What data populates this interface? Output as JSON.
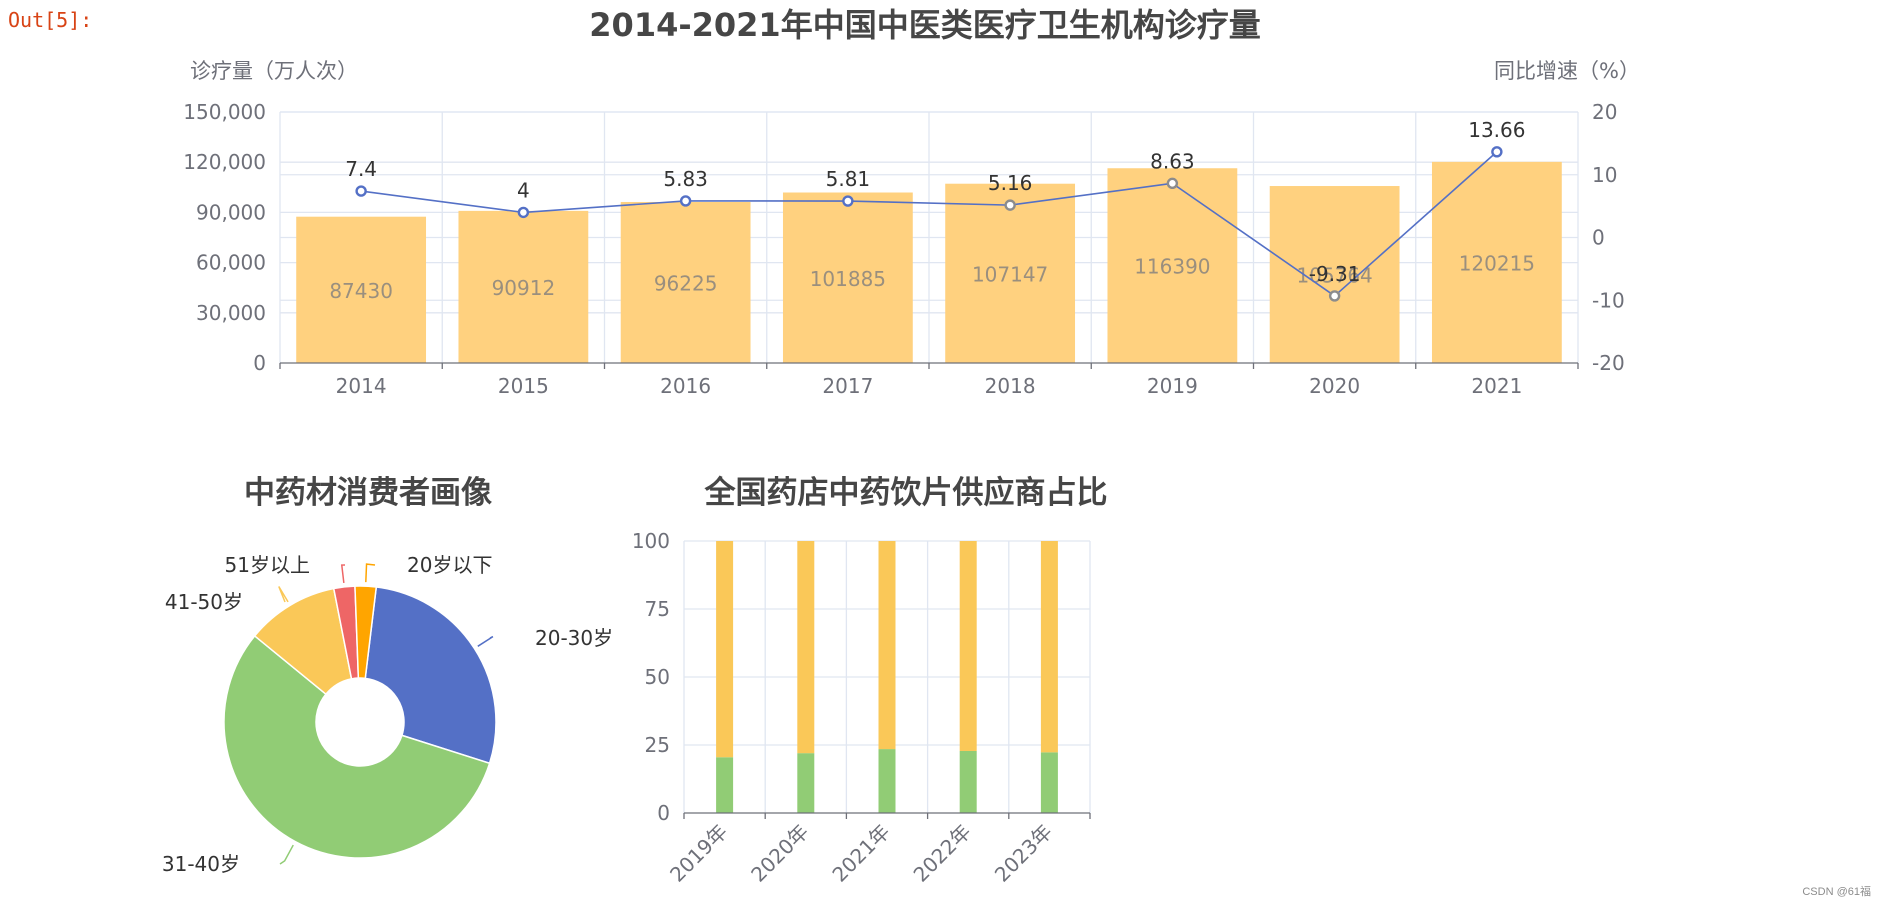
{
  "cell_label": "Out[5]:",
  "watermark": "CSDN @61福",
  "chart_data": [
    {
      "type": "bar",
      "title": "2014-2021年中国中医类医疗卫生机构诊疗量",
      "ylabel": "诊疗量（万人次）",
      "y2label": "同比增速（%）",
      "categories": [
        "2014",
        "2015",
        "2016",
        "2017",
        "2018",
        "2019",
        "2020",
        "2021"
      ],
      "ylim": [
        0,
        150000
      ],
      "y_ticks": [
        "0",
        "30,000",
        "60,000",
        "90,000",
        "120,000",
        "150,000"
      ],
      "y2lim": [
        -20,
        20
      ],
      "y2_ticks": [
        "-20",
        "-10",
        "0",
        "10",
        "20"
      ],
      "series": [
        {
          "type": "bar",
          "values": [
            87430,
            90912,
            96225,
            101885,
            107147,
            116390,
            105764,
            120215
          ],
          "color": "#ffd17f"
        },
        {
          "type": "line",
          "axis": "right",
          "values": [
            7.4,
            4,
            5.83,
            5.81,
            5.16,
            8.63,
            -9.31,
            13.66
          ],
          "color": "#5470c6",
          "color_secondary": "#8c8c8c"
        }
      ],
      "grid": true
    },
    {
      "type": "pie",
      "title": "中药材消费者画像",
      "donut": true,
      "slices": [
        {
          "label": "20-30岁",
          "value": 28,
          "color": "#5470c6"
        },
        {
          "label": "31-40岁",
          "value": 56,
          "color": "#91cc75"
        },
        {
          "label": "41-50岁",
          "value": 11,
          "color": "#fac858"
        },
        {
          "label": "51岁以上",
          "value": 2.5,
          "color": "#ee6666"
        },
        {
          "label": "20岁以下",
          "value": 2.5,
          "color": "#ffa500"
        }
      ]
    },
    {
      "type": "bar",
      "stacked": true,
      "title": "全国药店中药饮片供应商占比",
      "categories": [
        "2019年",
        "2020年",
        "2021年",
        "2022年",
        "2023年"
      ],
      "ylim": [
        0,
        100
      ],
      "y_ticks": [
        "0",
        "25",
        "50",
        "75",
        "100"
      ],
      "series": [
        {
          "values": [
            20.5,
            22,
            23.5,
            22.8,
            22.3
          ],
          "color": "#91cc75"
        },
        {
          "values": [
            79.5,
            78,
            76.5,
            77.2,
            77.7
          ],
          "color": "#fac858"
        }
      ],
      "grid": true
    }
  ]
}
